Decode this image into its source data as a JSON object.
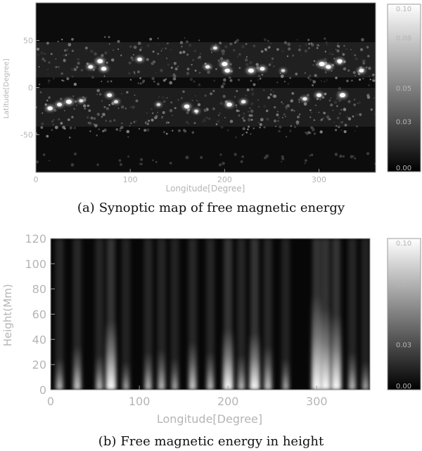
{
  "chart_data": [
    {
      "type": "heatmap",
      "panel_tag": "(a)",
      "caption": "Synoptic map of free magnetic energy",
      "xlabel": "Longitude[Degree]",
      "ylabel": "Latitude[Degree]",
      "xlim": [
        0,
        360
      ],
      "ylim": [
        -90,
        90
      ],
      "xticks": [
        0,
        100,
        200,
        300
      ],
      "yticks": [
        50,
        0,
        -50
      ],
      "colorbar": {
        "ticks": [
          "0.10",
          "0.08",
          "0.05",
          "0.03",
          "0.00"
        ],
        "values": [
          0.1,
          0.08,
          0.05,
          0.03,
          0.0
        ],
        "range": [
          0,
          0.1
        ]
      },
      "colormap": "grayscale",
      "hotspots": [
        {
          "lon": 15,
          "lat": -22,
          "value": 0.09
        },
        {
          "lon": 25,
          "lat": -18,
          "value": 0.08
        },
        {
          "lon": 35,
          "lat": -15,
          "value": 0.1
        },
        {
          "lon": 48,
          "lat": -14,
          "value": 0.06
        },
        {
          "lon": 58,
          "lat": 22,
          "value": 0.08
        },
        {
          "lon": 68,
          "lat": 28,
          "value": 0.1
        },
        {
          "lon": 72,
          "lat": 20,
          "value": 0.09
        },
        {
          "lon": 78,
          "lat": -8,
          "value": 0.08
        },
        {
          "lon": 85,
          "lat": -15,
          "value": 0.06
        },
        {
          "lon": 110,
          "lat": 30,
          "value": 0.08
        },
        {
          "lon": 130,
          "lat": -18,
          "value": 0.05
        },
        {
          "lon": 160,
          "lat": -20,
          "value": 0.09
        },
        {
          "lon": 170,
          "lat": -25,
          "value": 0.06
        },
        {
          "lon": 182,
          "lat": 22,
          "value": 0.07
        },
        {
          "lon": 190,
          "lat": 42,
          "value": 0.06
        },
        {
          "lon": 200,
          "lat": 25,
          "value": 0.1
        },
        {
          "lon": 203,
          "lat": 18,
          "value": 0.09
        },
        {
          "lon": 205,
          "lat": -18,
          "value": 0.09
        },
        {
          "lon": 220,
          "lat": -15,
          "value": 0.07
        },
        {
          "lon": 228,
          "lat": 18,
          "value": 0.1
        },
        {
          "lon": 240,
          "lat": 20,
          "value": 0.08
        },
        {
          "lon": 262,
          "lat": 18,
          "value": 0.05
        },
        {
          "lon": 285,
          "lat": -12,
          "value": 0.07
        },
        {
          "lon": 300,
          "lat": -8,
          "value": 0.08
        },
        {
          "lon": 303,
          "lat": 25,
          "value": 0.1
        },
        {
          "lon": 310,
          "lat": 22,
          "value": 0.09
        },
        {
          "lon": 322,
          "lat": 28,
          "value": 0.09
        },
        {
          "lon": 325,
          "lat": -8,
          "value": 0.1
        },
        {
          "lon": 345,
          "lat": 18,
          "value": 0.08
        }
      ]
    },
    {
      "type": "heatmap",
      "panel_tag": "(b)",
      "caption": "Free magnetic energy in height",
      "xlabel": "Longitude[Degree]",
      "ylabel": "Height(Mm)",
      "xlim": [
        0,
        360
      ],
      "ylim": [
        0,
        120
      ],
      "xticks": [
        0,
        100,
        200,
        300
      ],
      "yticks": [
        0,
        20,
        40,
        60,
        80,
        100,
        120
      ],
      "colorbar": {
        "ticks": [
          "0.10",
          "0.07",
          "0.03",
          "0.00"
        ],
        "values": [
          0.1,
          0.07,
          0.03,
          0.0
        ],
        "range": [
          0,
          0.1
        ]
      },
      "colormap": "grayscale",
      "columns": [
        {
          "lon": 10,
          "value": 0.05,
          "extent_mm": 25
        },
        {
          "lon": 30,
          "value": 0.06,
          "extent_mm": 35
        },
        {
          "lon": 55,
          "value": 0.05,
          "extent_mm": 28
        },
        {
          "lon": 68,
          "value": 0.1,
          "extent_mm": 55
        },
        {
          "lon": 85,
          "value": 0.04,
          "extent_mm": 22
        },
        {
          "lon": 110,
          "value": 0.05,
          "extent_mm": 30
        },
        {
          "lon": 125,
          "value": 0.05,
          "extent_mm": 32
        },
        {
          "lon": 140,
          "value": 0.04,
          "extent_mm": 25
        },
        {
          "lon": 160,
          "value": 0.06,
          "extent_mm": 38
        },
        {
          "lon": 180,
          "value": 0.05,
          "extent_mm": 30
        },
        {
          "lon": 200,
          "value": 0.1,
          "extent_mm": 48
        },
        {
          "lon": 215,
          "value": 0.05,
          "extent_mm": 28
        },
        {
          "lon": 230,
          "value": 0.1,
          "extent_mm": 45
        },
        {
          "lon": 245,
          "value": 0.06,
          "extent_mm": 35
        },
        {
          "lon": 265,
          "value": 0.04,
          "extent_mm": 25
        },
        {
          "lon": 300,
          "value": 0.1,
          "extent_mm": 75
        },
        {
          "lon": 310,
          "value": 0.1,
          "extent_mm": 65
        },
        {
          "lon": 322,
          "value": 0.1,
          "extent_mm": 60
        },
        {
          "lon": 340,
          "value": 0.05,
          "extent_mm": 30
        },
        {
          "lon": 355,
          "value": 0.04,
          "extent_mm": 22
        }
      ]
    }
  ]
}
